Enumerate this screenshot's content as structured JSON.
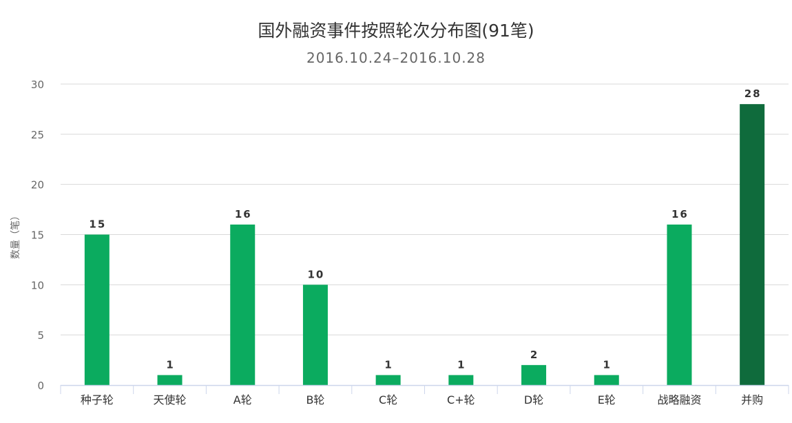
{
  "chart_data": {
    "type": "bar",
    "title": "国外融资事件按照轮次分布图(91笔)",
    "subtitle": "2016.10.24–2016.10.28",
    "xlabel": "",
    "ylabel": "数量（笔）",
    "ylim": [
      0,
      30
    ],
    "yticks": [
      0,
      5,
      10,
      15,
      20,
      25,
      30
    ],
    "grid": true,
    "legend": "none",
    "categories": [
      "种子轮",
      "天使轮",
      "A轮",
      "B轮",
      "C轮",
      "C+轮",
      "D轮",
      "E轮",
      "战略融资",
      "并购"
    ],
    "values": [
      15,
      1,
      16,
      10,
      1,
      1,
      2,
      1,
      16,
      28
    ],
    "colors": {
      "bar": "#0bab5f",
      "highlight": "#0f6b3c",
      "grid": "#d8d8d8",
      "axis": "#ccd6eb"
    },
    "highlight_category": "并购"
  }
}
